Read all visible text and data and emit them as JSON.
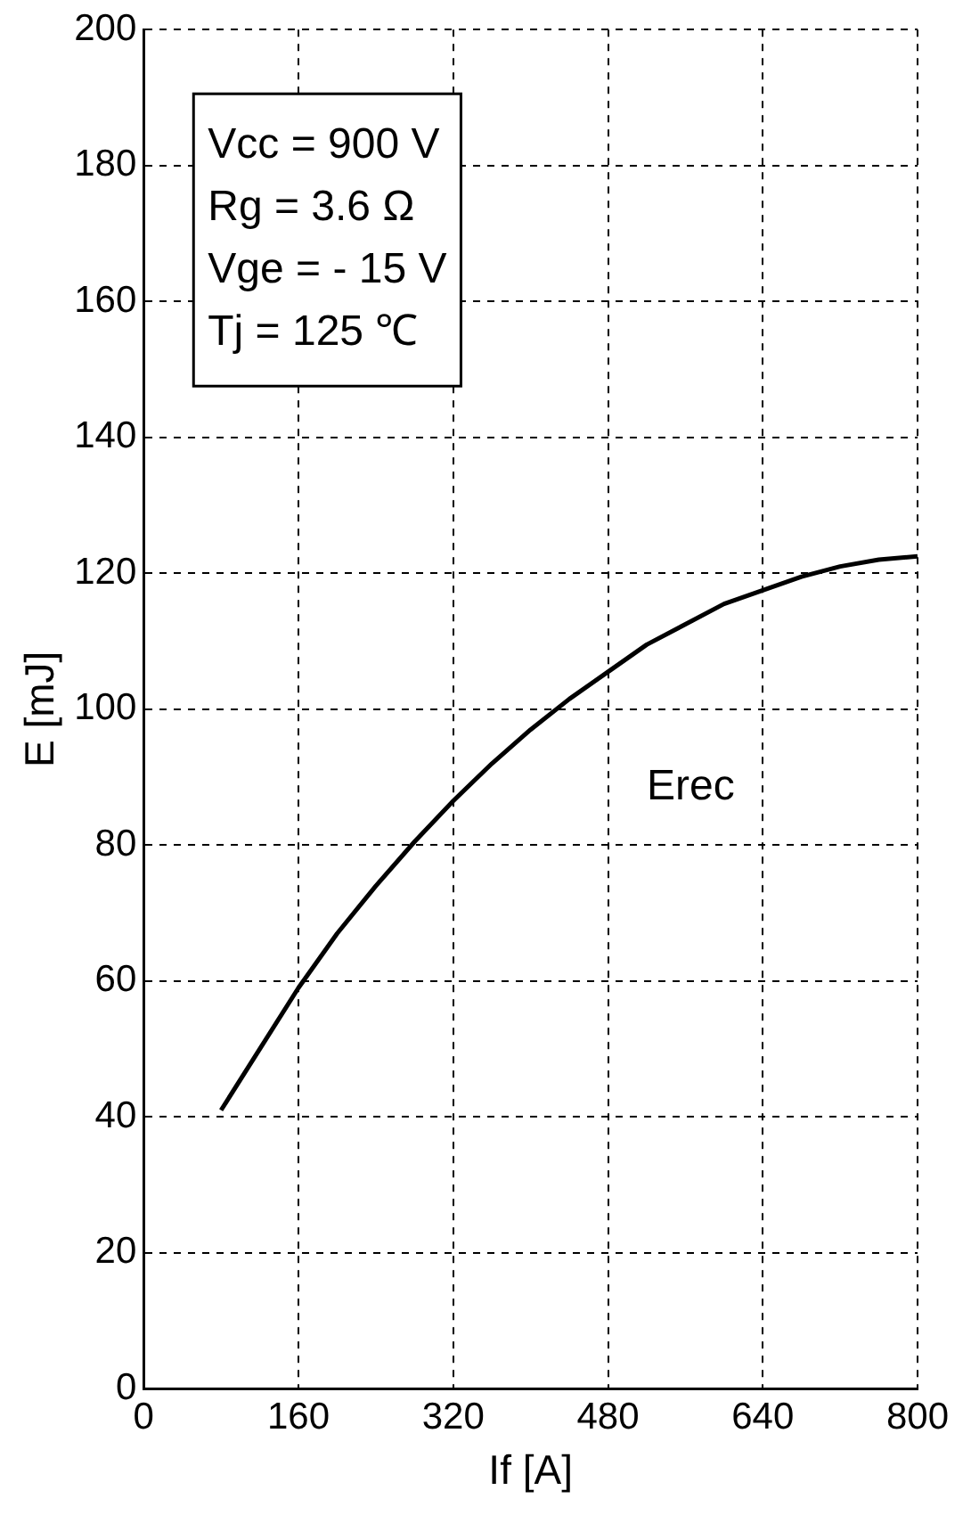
{
  "chart_data": {
    "type": "line",
    "xlabel": "If [A]",
    "ylabel": "E [mJ]",
    "x": [
      80,
      120,
      160,
      200,
      240,
      280,
      320,
      360,
      400,
      440,
      480,
      520,
      560,
      600,
      640,
      680,
      720,
      760,
      800
    ],
    "series": [
      {
        "name": "Erec",
        "color": "#000000",
        "values": [
          41,
          50,
          59,
          67,
          74,
          80.5,
          86.5,
          92,
          97,
          101.5,
          105.5,
          109.5,
          112.5,
          115.5,
          117.5,
          119.5,
          121,
          122,
          122.5
        ]
      }
    ],
    "xlim": [
      0,
      800
    ],
    "xticks": [
      0,
      160,
      320,
      480,
      640,
      800
    ],
    "ylim": [
      0,
      200
    ],
    "yticks": [
      0,
      20,
      40,
      60,
      80,
      100,
      120,
      140,
      160,
      180,
      200
    ],
    "annotations": [
      "Vcc = 900 V",
      "Rg = 3.6 Ω",
      "Vge = - 15 V",
      "Tj = 125 ℃"
    ],
    "grid": true,
    "legend": false,
    "marker": "none",
    "line_style": "solid"
  }
}
